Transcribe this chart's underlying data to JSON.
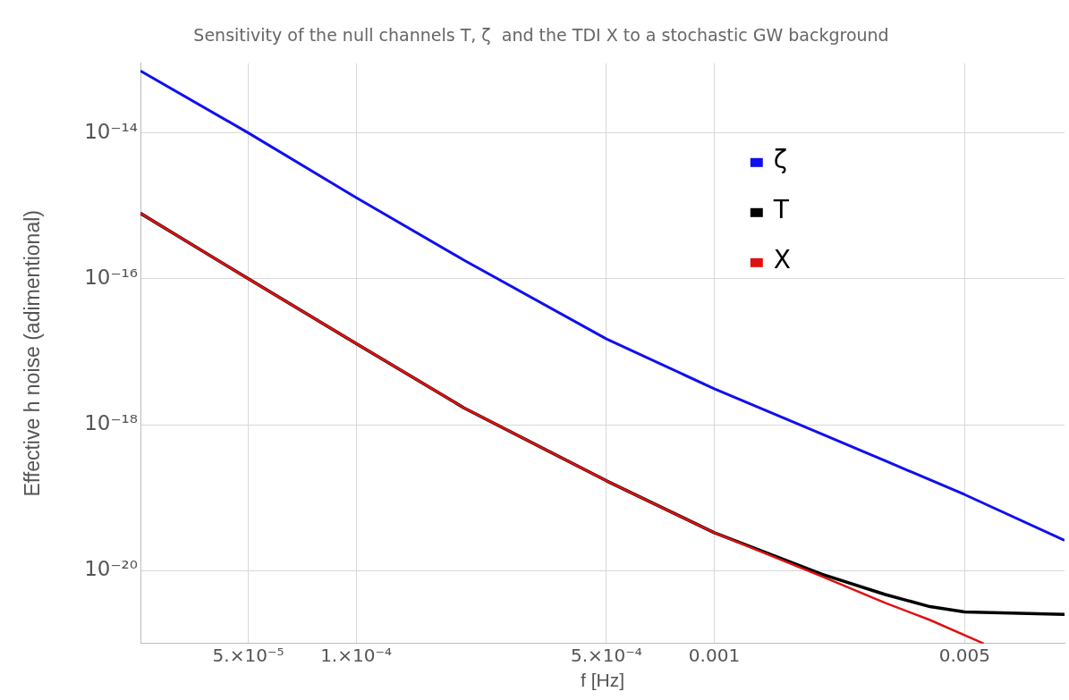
{
  "chart_data": {
    "type": "line",
    "title": "Sensitivity of the null channels T, ζ  and the TDI X to a stochastic GW background",
    "xlabel": "f [Hz]",
    "ylabel": "Effective h noise (adimentional)",
    "log": "xy",
    "grid": true,
    "legend": "top right",
    "marker": "none",
    "line_style": "solid",
    "xlim": [
      2.5e-05,
      0.0095
    ],
    "ylim": [
      1e-21,
      9e-14
    ],
    "xticks": [
      {
        "value": 5e-05,
        "label": "5.×10⁻⁵"
      },
      {
        "value": 0.0001,
        "label": "1.×10⁻⁴"
      },
      {
        "value": 0.0005,
        "label": "5.×10⁻⁴"
      },
      0.001,
      0.005
    ],
    "yticks": [
      {
        "value": 1e-20,
        "label": "10⁻²⁰"
      },
      {
        "value": 1e-18,
        "label": "10⁻¹⁸"
      },
      {
        "value": 1e-16,
        "label": "10⁻¹⁶"
      },
      {
        "value": 1e-14,
        "label": "10⁻¹⁴"
      }
    ],
    "series": [
      {
        "name": "ζ",
        "color": "#1010ee",
        "x": [
          2.5e-05,
          5e-05,
          0.0001,
          0.0002,
          0.0005,
          0.001,
          0.002,
          0.003,
          0.005,
          0.0095
        ],
        "values": [
          7.1e-14,
          1e-14,
          1.3e-15,
          1.8e-16,
          1.5e-17,
          3.1e-18,
          7.4e-19,
          3.2e-19,
          1.1e-19,
          2.6e-20
        ]
      },
      {
        "name": "T",
        "color": "#000000",
        "x": [
          2.5e-05,
          5e-05,
          0.0001,
          0.0002,
          0.0005,
          0.001,
          0.002,
          0.003,
          0.004,
          0.005,
          0.0095
        ],
        "values": [
          7.9e-16,
          1e-16,
          1.3e-17,
          1.7e-18,
          1.7e-19,
          3.3e-20,
          8.9e-21,
          4.7e-21,
          3.2e-21,
          2.7e-21,
          2.5e-21
        ]
      },
      {
        "name": "X",
        "color": "#e01010",
        "x": [
          2.5e-05,
          5e-05,
          0.0001,
          0.0002,
          0.0005,
          0.001,
          0.002,
          0.003,
          0.004,
          0.00565
        ],
        "values": [
          7.9e-16,
          1e-16,
          1.3e-17,
          1.7e-18,
          1.7e-19,
          3.3e-20,
          8.3e-21,
          3.6e-21,
          2.1e-21,
          1e-21
        ]
      }
    ]
  }
}
